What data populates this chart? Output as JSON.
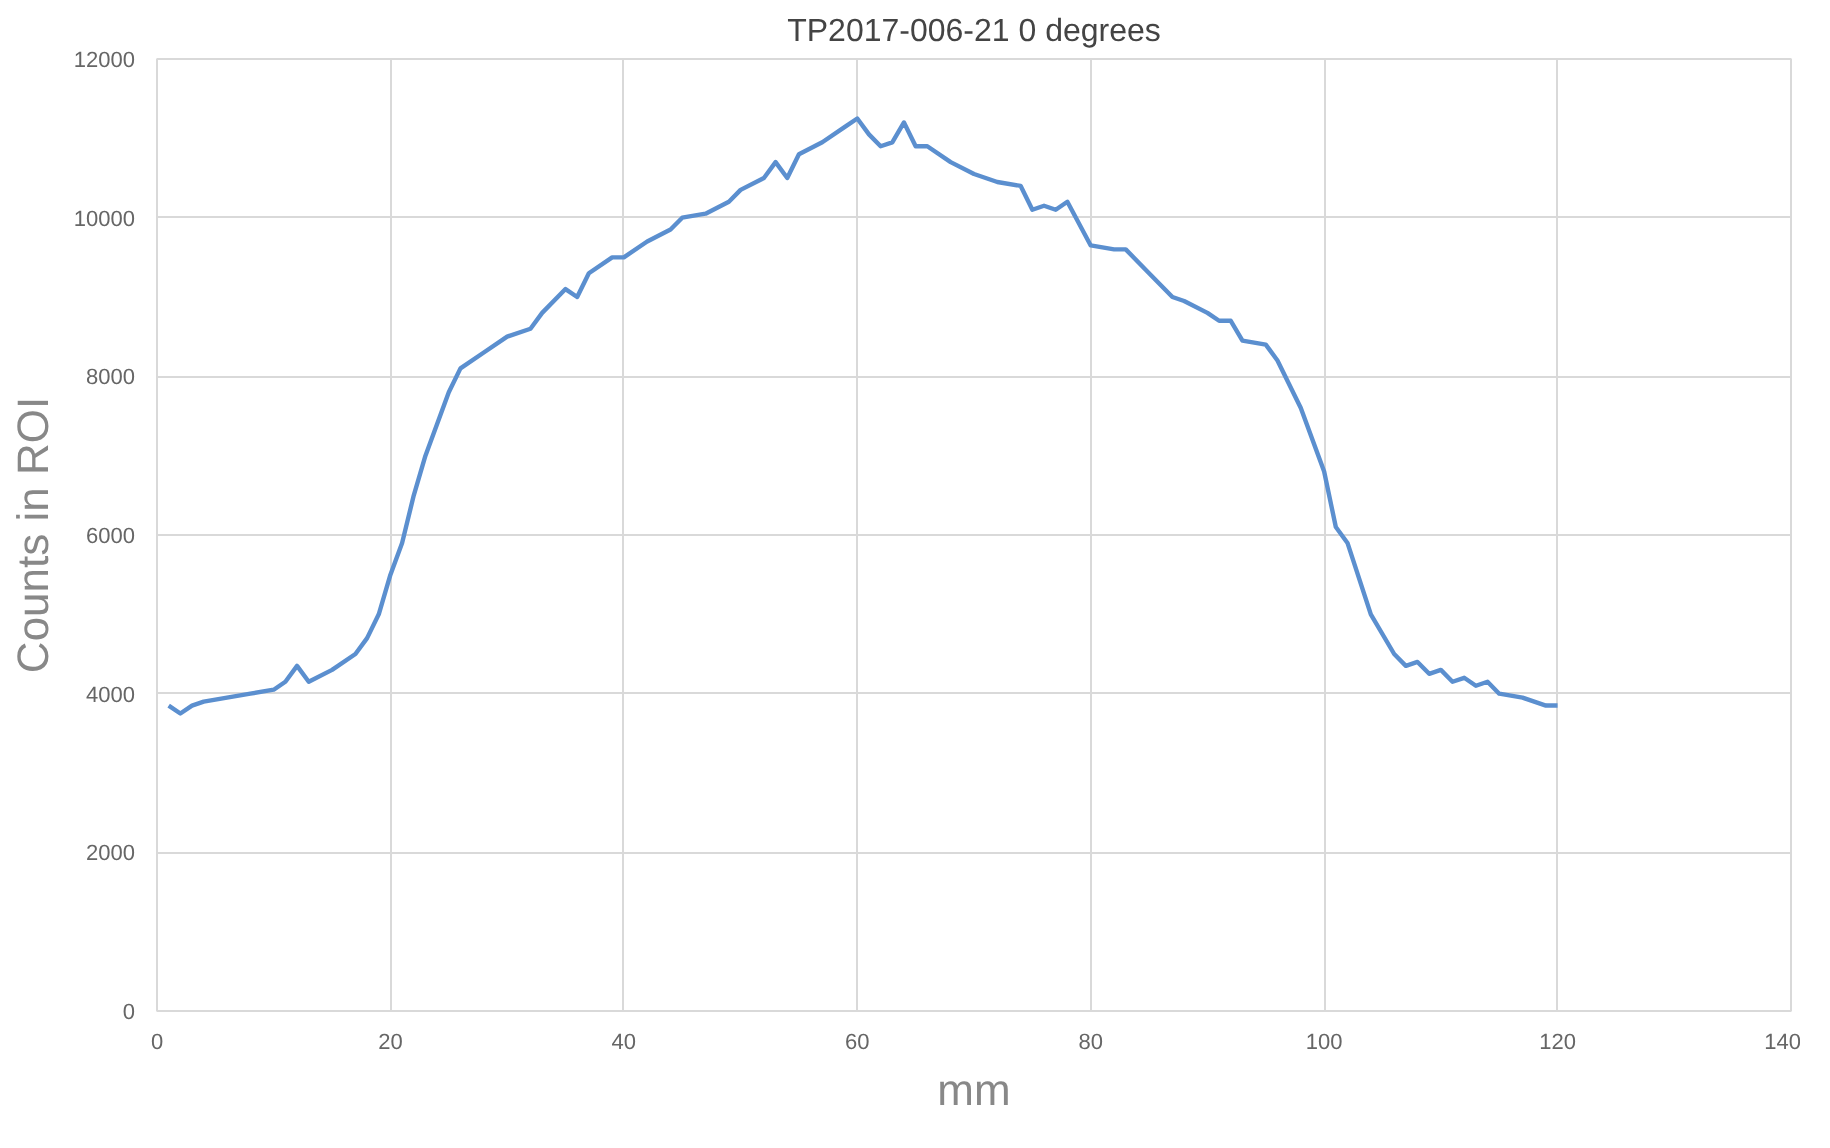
{
  "chart_data": {
    "type": "line",
    "title": "TP2017-006-21 0 degrees",
    "xlabel": "mm",
    "ylabel": "Counts in ROI",
    "xlim": [
      0,
      140
    ],
    "xticks": [
      0,
      20,
      40,
      60,
      80,
      100,
      120,
      140
    ],
    "ylim": [
      0,
      12000
    ],
    "yticks": [
      0,
      2000,
      4000,
      6000,
      8000,
      10000,
      12000
    ],
    "grid": true,
    "marker": "none",
    "line_style": "solid",
    "series": [
      {
        "color": "#5b8fcf",
        "x": [
          1,
          2,
          3,
          4,
          6,
          8,
          10,
          11,
          12,
          13,
          15,
          17,
          18,
          19,
          20,
          21,
          22,
          23,
          24,
          25,
          26,
          28,
          30,
          32,
          33,
          35,
          36,
          37,
          39,
          40,
          42,
          44,
          45,
          47,
          49,
          50,
          52,
          53,
          54,
          55,
          57,
          59,
          60,
          61,
          62,
          63,
          64,
          65,
          66,
          68,
          70,
          72,
          74,
          75,
          76,
          77,
          78,
          80,
          82,
          83,
          85,
          87,
          88,
          90,
          91,
          92,
          93,
          95,
          96,
          98,
          100,
          101,
          102,
          104,
          106,
          107,
          108,
          109,
          110,
          111,
          112,
          113,
          114,
          115,
          117,
          119,
          120
        ],
        "values": [
          3850,
          3750,
          3850,
          3900,
          3950,
          4000,
          4050,
          4150,
          4350,
          4150,
          4300,
          4500,
          4700,
          5000,
          5500,
          5900,
          6500,
          7000,
          7400,
          7800,
          8100,
          8300,
          8500,
          8600,
          8800,
          9100,
          9000,
          9300,
          9500,
          9500,
          9700,
          9850,
          10000,
          10050,
          10200,
          10350,
          10500,
          10700,
          10500,
          10800,
          10950,
          11150,
          11250,
          11050,
          10900,
          10950,
          11200,
          10900,
          10900,
          10700,
          10550,
          10450,
          10400,
          10100,
          10150,
          10100,
          10200,
          9650,
          9600,
          9600,
          9300,
          9000,
          8950,
          8800,
          8700,
          8700,
          8450,
          8400,
          8200,
          7600,
          6800,
          6100,
          5900,
          5000,
          4500,
          4350,
          4400,
          4250,
          4300,
          4150,
          4200,
          4100,
          4150,
          4000,
          3950,
          3850,
          3850
        ]
      }
    ]
  }
}
